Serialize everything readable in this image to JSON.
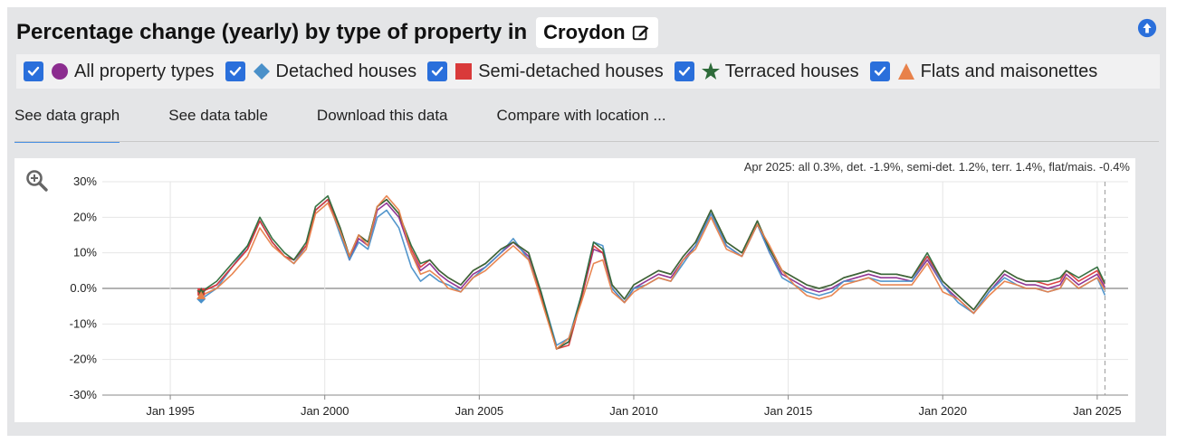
{
  "header": {
    "title": "Percentage change (yearly) by type of property in",
    "location": "Croydon"
  },
  "legend": [
    {
      "label": "All property types",
      "color": "#8b2c8f",
      "marker": "circle",
      "checked": true
    },
    {
      "label": "Detached houses",
      "color": "#4a90c9",
      "marker": "diamond",
      "checked": true
    },
    {
      "label": "Semi-detached houses",
      "color": "#d93a3a",
      "marker": "square",
      "checked": true
    },
    {
      "label": "Terraced houses",
      "color": "#2e6b3a",
      "marker": "star",
      "checked": true
    },
    {
      "label": "Flats and maisonettes",
      "color": "#e8814a",
      "marker": "triangle",
      "checked": true
    }
  ],
  "tabs": [
    {
      "label": "See data graph",
      "active": true
    },
    {
      "label": "See data table",
      "active": false
    },
    {
      "label": "Download this data",
      "active": false
    },
    {
      "label": "Compare with location ...",
      "active": false
    }
  ],
  "annotation": "Apr 2025: all 0.3%, det. -1.9%, semi-det. 1.2%, terr. 1.4%, flat/mais. -0.4%",
  "chart_data": {
    "type": "line",
    "ylim": [
      -30,
      30
    ],
    "xlim": [
      1992.8,
      2026.0
    ],
    "yticks": [
      30,
      20,
      10,
      0,
      -10,
      -20,
      -30
    ],
    "ytick_labels": [
      "30%",
      "20%",
      "10%",
      "0.0%",
      "-10%",
      "-20%",
      "-30%"
    ],
    "xticks": [
      1995,
      2000,
      2005,
      2010,
      2015,
      2020,
      2025
    ],
    "xtick_labels": [
      "Jan 1995",
      "Jan 2000",
      "Jan 2005",
      "Jan 2010",
      "Jan 2015",
      "Jan 2020",
      "Jan 2025"
    ],
    "grid": true,
    "base_x": [
      1996.0,
      1996.5,
      1997.0,
      1997.5,
      1997.9,
      1998.3,
      1998.7,
      1999.0,
      1999.4,
      1999.7,
      2000.1,
      2000.5,
      2000.8,
      2001.1,
      2001.4,
      2001.7,
      2002.0,
      2002.4,
      2002.8,
      2003.1,
      2003.4,
      2003.7,
      2004.0,
      2004.4,
      2004.8,
      2005.2,
      2005.7,
      2006.1,
      2006.6,
      2007.0,
      2007.5,
      2007.9,
      2008.3,
      2008.7,
      2009.0,
      2009.3,
      2009.7,
      2010.0,
      2010.4,
      2010.8,
      2011.2,
      2011.6,
      2012.0,
      2012.5,
      2013.0,
      2013.5,
      2014.0,
      2014.4,
      2014.8,
      2015.2,
      2015.6,
      2016.0,
      2016.4,
      2016.8,
      2017.2,
      2017.6,
      2018.0,
      2018.5,
      2019.0,
      2019.5,
      2020.0,
      2020.5,
      2021.0,
      2021.5,
      2022.0,
      2022.4,
      2022.7,
      2023.0,
      2023.4,
      2023.8,
      2024.0,
      2024.4,
      2024.8,
      2025.0,
      2025.25
    ],
    "series": [
      {
        "name": "All property types",
        "color": "#8b2c8f",
        "values": [
          -1,
          1,
          6,
          11,
          19,
          13,
          9,
          8,
          12,
          22,
          25,
          16,
          8,
          14,
          12,
          22,
          24,
          20,
          10,
          5,
          7,
          4,
          2,
          0,
          4,
          6,
          10,
          13,
          9,
          -2,
          -17,
          -15,
          -3,
          11,
          10,
          0,
          -4,
          0,
          2,
          4,
          3,
          8,
          12,
          21,
          12,
          9,
          18,
          10,
          4,
          2,
          0,
          -1,
          0,
          2,
          3,
          4,
          3,
          3,
          2,
          8,
          1,
          -3,
          -7,
          -1,
          4,
          2,
          1,
          1,
          0,
          1,
          4,
          1,
          3,
          4,
          0.3
        ]
      },
      {
        "name": "Detached houses",
        "color": "#4a90c9",
        "values": [
          -3,
          0,
          6,
          12,
          19,
          13,
          9,
          7,
          12,
          22,
          25,
          15,
          8,
          13,
          11,
          20,
          22,
          17,
          6,
          2,
          4,
          2,
          1,
          -1,
          3,
          6,
          10,
          14,
          8,
          -1,
          -16,
          -14,
          -2,
          13,
          12,
          0,
          -4,
          0,
          1,
          3,
          2,
          7,
          12,
          21,
          12,
          9,
          18,
          10,
          3,
          1,
          -1,
          -2,
          -1,
          2,
          2,
          3,
          2,
          2,
          2,
          9,
          1,
          -4,
          -7,
          -1,
          3,
          1,
          0,
          0,
          -1,
          0,
          3,
          0,
          2,
          3,
          -1.9
        ]
      },
      {
        "name": "Semi-detached houses",
        "color": "#d93a3a",
        "values": [
          -1,
          1,
          6,
          11,
          19,
          13,
          9,
          8,
          12,
          22,
          25,
          17,
          9,
          15,
          13,
          23,
          25,
          21,
          11,
          6,
          8,
          5,
          3,
          1,
          5,
          7,
          11,
          13,
          10,
          -2,
          -17,
          -16,
          -3,
          12,
          10,
          1,
          -3,
          1,
          3,
          5,
          4,
          9,
          13,
          22,
          13,
          10,
          19,
          11,
          5,
          3,
          1,
          0,
          1,
          3,
          4,
          5,
          4,
          4,
          3,
          9,
          2,
          -2,
          -6,
          0,
          5,
          3,
          2,
          2,
          1,
          2,
          5,
          2,
          4,
          5,
          1.2
        ]
      },
      {
        "name": "Terraced houses",
        "color": "#2e6b3a",
        "values": [
          -1,
          2,
          7,
          12,
          20,
          14,
          10,
          8,
          13,
          23,
          26,
          17,
          9,
          15,
          13,
          23,
          25,
          21,
          12,
          7,
          8,
          5,
          3,
          1,
          5,
          7,
          11,
          13,
          10,
          -1,
          -17,
          -15,
          -2,
          13,
          11,
          1,
          -3,
          1,
          3,
          5,
          4,
          9,
          13,
          22,
          13,
          10,
          19,
          11,
          5,
          3,
          1,
          0,
          1,
          3,
          4,
          5,
          4,
          4,
          3,
          10,
          2,
          -2,
          -6,
          0,
          5,
          3,
          2,
          2,
          2,
          3,
          5,
          3,
          5,
          6,
          1.4
        ]
      },
      {
        "name": "Flats and maisonettes",
        "color": "#e8814a",
        "values": [
          -2,
          0,
          4,
          9,
          17,
          12,
          9,
          7,
          11,
          21,
          24,
          16,
          9,
          15,
          12,
          23,
          26,
          22,
          10,
          4,
          5,
          3,
          0,
          -1,
          3,
          5,
          9,
          12,
          8,
          -3,
          -17,
          -14,
          -4,
          7,
          8,
          -1,
          -4,
          -1,
          1,
          3,
          2,
          8,
          11,
          20,
          11,
          9,
          18,
          12,
          5,
          1,
          -2,
          -3,
          -2,
          1,
          2,
          3,
          1,
          1,
          1,
          7,
          -1,
          -3,
          -7,
          -2,
          2,
          1,
          0,
          0,
          -1,
          0,
          3,
          0,
          2,
          3,
          -0.4
        ]
      }
    ]
  }
}
